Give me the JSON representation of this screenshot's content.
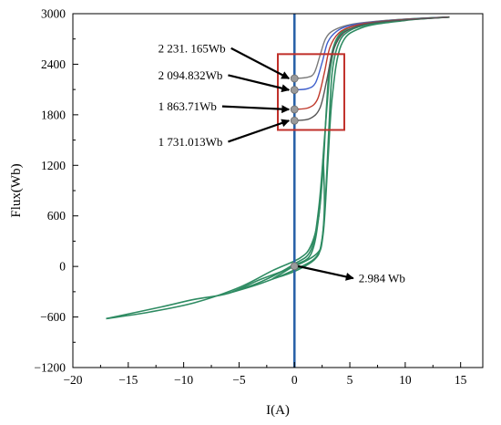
{
  "chart_data": {
    "type": "line",
    "xlabel": "I(A)",
    "ylabel": "Flux(Wb)",
    "xlim": [
      -20,
      17
    ],
    "ylim": [
      -1200,
      3000
    ],
    "x_ticks": [
      -20,
      -15,
      -10,
      -5,
      0,
      5,
      10,
      15
    ],
    "y_ticks": [
      -1200,
      -600,
      0,
      600,
      1200,
      1800,
      2400,
      3000
    ],
    "grid": false,
    "vertical_line": {
      "x": 0,
      "color": "#2a62a8"
    },
    "highlight_box": {
      "x": [
        -1.5,
        4.5
      ],
      "y": [
        1620,
        2520
      ],
      "color": "#c0302a"
    },
    "loops": [
      {
        "color": "#2e8b62",
        "upper": [
          [
            -17,
            -620
          ],
          [
            -13,
            -540
          ],
          [
            -9,
            -430
          ],
          [
            -5,
            -250
          ],
          [
            -2,
            -50
          ],
          [
            0.5,
            100
          ],
          [
            1.5,
            250
          ],
          [
            2.2,
            600
          ],
          [
            2.6,
            1200
          ],
          [
            2.9,
            1900
          ],
          [
            3.2,
            2400
          ],
          [
            3.8,
            2700
          ],
          [
            5,
            2840
          ],
          [
            7,
            2900
          ],
          [
            10,
            2935
          ],
          [
            14,
            2960
          ]
        ],
        "lower": [
          [
            14,
            2960
          ],
          [
            10,
            2925
          ],
          [
            7,
            2880
          ],
          [
            5,
            2800
          ],
          [
            4,
            2650
          ],
          [
            3.4,
            2300
          ],
          [
            3.1,
            1600
          ],
          [
            2.8,
            800
          ],
          [
            2.5,
            320
          ],
          [
            2,
            150
          ],
          [
            0,
            0
          ],
          [
            -3,
            -150
          ],
          [
            -6,
            -320
          ],
          [
            -9,
            -390
          ],
          [
            -12,
            -480
          ],
          [
            -17,
            -620
          ]
        ]
      },
      {
        "color": "#2e8b62",
        "upper": [
          [
            -6,
            -320
          ],
          [
            -3,
            -180
          ],
          [
            0,
            30
          ],
          [
            1.5,
            200
          ],
          [
            2.2,
            700
          ],
          [
            2.7,
            1500
          ],
          [
            3,
            2000
          ],
          [
            3.3,
            2400
          ],
          [
            4,
            2720
          ],
          [
            6,
            2860
          ],
          [
            10,
            2930
          ],
          [
            14,
            2960
          ]
        ],
        "lower": [
          [
            14,
            2960
          ],
          [
            10,
            2920
          ],
          [
            6,
            2830
          ],
          [
            4.2,
            2620
          ],
          [
            3.4,
            2000
          ],
          [
            3,
            1200
          ],
          [
            2.6,
            400
          ],
          [
            2,
            120
          ],
          [
            0,
            -40
          ],
          [
            -3,
            -200
          ],
          [
            -6,
            -320
          ]
        ]
      },
      {
        "color": "#2e8b62",
        "upper": [
          [
            -2,
            -150
          ],
          [
            0,
            10
          ],
          [
            1.5,
            150
          ],
          [
            2.2,
            600
          ],
          [
            2.6,
            1300
          ]
        ],
        "lower": [
          [
            2.6,
            1300
          ],
          [
            2.7,
            700
          ],
          [
            2.4,
            250
          ],
          [
            1.8,
            80
          ],
          [
            0,
            -60
          ],
          [
            -2,
            -150
          ]
        ]
      }
    ],
    "upper_branches": [
      {
        "color": "#7a7a7a",
        "points": [
          [
            0,
            2231.165
          ],
          [
            1.2,
            2245
          ],
          [
            1.8,
            2300
          ],
          [
            2.3,
            2500
          ],
          [
            2.8,
            2700
          ],
          [
            3.5,
            2800
          ],
          [
            5,
            2870
          ],
          [
            7,
            2905
          ],
          [
            10,
            2935
          ],
          [
            14,
            2960
          ]
        ]
      },
      {
        "color": "#3f5fcc",
        "points": [
          [
            0,
            2094.832
          ],
          [
            1.2,
            2110
          ],
          [
            1.9,
            2180
          ],
          [
            2.5,
            2420
          ],
          [
            3,
            2660
          ],
          [
            3.8,
            2790
          ],
          [
            5,
            2860
          ],
          [
            7,
            2900
          ],
          [
            10,
            2932
          ],
          [
            14,
            2960
          ]
        ]
      },
      {
        "color": "#c0392b",
        "points": [
          [
            0,
            1863.71
          ],
          [
            1.3,
            1885
          ],
          [
            2.1,
            1990
          ],
          [
            2.7,
            2300
          ],
          [
            3.2,
            2600
          ],
          [
            4,
            2770
          ],
          [
            5.2,
            2850
          ],
          [
            7,
            2895
          ],
          [
            10,
            2930
          ],
          [
            14,
            2960
          ]
        ]
      },
      {
        "color": "#555555",
        "points": [
          [
            0,
            1731.013
          ],
          [
            1.4,
            1755
          ],
          [
            2.3,
            1880
          ],
          [
            2.9,
            2200
          ],
          [
            3.4,
            2520
          ],
          [
            4.2,
            2740
          ],
          [
            5.4,
            2840
          ],
          [
            7,
            2890
          ],
          [
            10,
            2928
          ],
          [
            14,
            2960
          ]
        ]
      }
    ],
    "markers": [
      {
        "x": 0,
        "y": 2231.165,
        "label": "2 231. 165Wb",
        "label_at": [
          -12.3,
          2590
        ]
      },
      {
        "x": 0,
        "y": 2094.832,
        "label": "2 094.832Wb",
        "label_at": [
          -12.3,
          2270
        ]
      },
      {
        "x": 0,
        "y": 1863.71,
        "label": "1 863.71Wb",
        "label_at": [
          -12.3,
          1900
        ]
      },
      {
        "x": 0,
        "y": 1731.013,
        "label": "1 731.013Wb",
        "label_at": [
          -12.3,
          1480
        ]
      },
      {
        "x": 0,
        "y": 2.984,
        "label": "2.984 Wb",
        "label_at": [
          5.8,
          -140
        ]
      }
    ]
  }
}
